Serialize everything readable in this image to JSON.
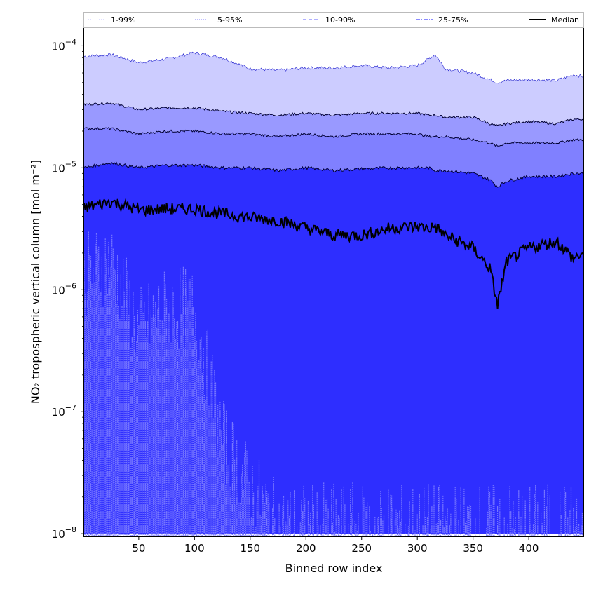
{
  "chart_data": {
    "type": "area",
    "xlabel": "Binned row index",
    "ylabel": "NO₂ tropospheric vertical column [mol m⁻²]",
    "yscale": "log",
    "xlim": [
      1,
      449
    ],
    "ylim": [
      9.5e-09,
      0.00014
    ],
    "x_ticks": [
      50,
      100,
      150,
      200,
      250,
      300,
      350,
      400
    ],
    "y_ticks": [
      {
        "value": 1e-08,
        "base": "10",
        "exp": "−8"
      },
      {
        "value": 1e-07,
        "base": "10",
        "exp": "−7"
      },
      {
        "value": 1e-06,
        "base": "10",
        "exp": "−6"
      },
      {
        "value": 1e-05,
        "base": "10",
        "exp": "−5"
      },
      {
        "value": 0.0001,
        "base": "10",
        "exp": "−4"
      }
    ],
    "legend_position": "top, above plot",
    "legend": [
      {
        "label": "1-99%",
        "color": "#ccccff",
        "style": "dotted"
      },
      {
        "label": "5-95%",
        "color": "#9999ff",
        "style": "dotted"
      },
      {
        "label": "10-90%",
        "color": "#8080ff",
        "style": "dashed"
      },
      {
        "label": "25-75%",
        "color": "#4444ff",
        "style": "dashdot"
      },
      {
        "label": "Median",
        "color": "#000000",
        "style": "solid"
      }
    ],
    "x": [
      1,
      25,
      50,
      75,
      100,
      125,
      150,
      175,
      200,
      225,
      250,
      275,
      300,
      310,
      316,
      325,
      350,
      365,
      372,
      380,
      400,
      425,
      440,
      449
    ],
    "series": [
      {
        "name": "1-99%",
        "color": "#ccccff",
        "upper": [
          8.2e-05,
          8.5e-05,
          7.3e-05,
          7.8e-05,
          8.8e-05,
          8e-05,
          6.5e-05,
          6.3e-05,
          6.6e-05,
          6.6e-05,
          6.9e-05,
          6.6e-05,
          6.9e-05,
          7.8e-05,
          8.5e-05,
          6.5e-05,
          6e-05,
          5.3e-05,
          5e-05,
          5.2e-05,
          5.3e-05,
          5.2e-05,
          5.8e-05,
          5.6e-05
        ],
        "lower": [
          1.1e-06,
          1.5e-06,
          4e-07,
          6e-07,
          6e-07,
          5e-08,
          2e-08,
          1e-08,
          1e-08,
          1e-08,
          1e-08,
          1e-08,
          1e-08,
          1e-08,
          1e-08,
          1e-08,
          1e-08,
          1e-08,
          1e-08,
          1e-08,
          1e-08,
          1e-08,
          1e-08,
          1e-08
        ]
      },
      {
        "name": "5-95%",
        "color": "#9999ff",
        "upper": [
          3.3e-05,
          3.4e-05,
          3e-05,
          3.1e-05,
          3.1e-05,
          2.9e-05,
          2.8e-05,
          2.7e-05,
          2.8e-05,
          2.7e-05,
          2.8e-05,
          2.8e-05,
          2.8e-05,
          2.7e-05,
          2.7e-05,
          2.6e-05,
          2.6e-05,
          2.3e-05,
          2.2e-05,
          2.3e-05,
          2.4e-05,
          2.3e-05,
          2.5e-05,
          2.5e-05
        ]
      },
      {
        "name": "10-90%",
        "color": "#8080ff",
        "upper": [
          2.1e-05,
          2.1e-05,
          1.9e-05,
          2e-05,
          2e-05,
          1.9e-05,
          1.9e-05,
          1.8e-05,
          1.9e-05,
          1.8e-05,
          1.9e-05,
          1.9e-05,
          1.9e-05,
          1.8e-05,
          1.8e-05,
          1.8e-05,
          1.7e-05,
          1.6e-05,
          1.5e-05,
          1.6e-05,
          1.6e-05,
          1.6e-05,
          1.7e-05,
          1.7e-05
        ],
        "lower": [
          1e-08,
          1e-08,
          1e-08,
          1e-08,
          1e-08,
          1e-08,
          1e-08,
          1e-08,
          1e-08,
          1e-08,
          1e-08,
          1e-08,
          1e-08,
          1e-08,
          1e-08,
          1e-08,
          1e-08,
          1e-08,
          1e-08,
          1e-08,
          1e-08,
          1e-08,
          1e-08,
          1e-08
        ]
      },
      {
        "name": "25-75%",
        "color": "#4444ff",
        "upper": [
          1e-05,
          1.1e-05,
          1e-05,
          1.05e-05,
          1.05e-05,
          1e-05,
          1e-05,
          9.5e-06,
          1e-05,
          9.5e-06,
          9.8e-06,
          1e-05,
          1e-05,
          1e-05,
          9.5e-06,
          9.5e-06,
          9e-06,
          8e-06,
          7e-06,
          7.8e-06,
          8.5e-06,
          8.5e-06,
          9e-06,
          9e-06
        ],
        "lower": [
          1e-08,
          1e-08,
          1e-08,
          1e-08,
          1e-08,
          1e-08,
          1e-08,
          1e-08,
          1e-08,
          1e-08,
          1e-08,
          1e-08,
          1e-08,
          1e-08,
          1e-08,
          1e-08,
          1e-08,
          1e-08,
          1e-08,
          1e-08,
          1e-08,
          1e-08,
          1e-08,
          1e-08
        ]
      },
      {
        "name": "Median",
        "color": "#000000",
        "values": [
          4.7e-06,
          5.3e-06,
          4.5e-06,
          4.6e-06,
          4.6e-06,
          4.2e-06,
          3.9e-06,
          3.7e-06,
          3.2e-06,
          2.8e-06,
          2.8e-06,
          3.2e-06,
          3.3e-06,
          3.2e-06,
          3.3e-06,
          2.8e-06,
          2.2e-06,
          1.5e-06,
          7.5e-07,
          1.7e-06,
          2.2e-06,
          2.5e-06,
          1.8e-06,
          2e-06
        ]
      }
    ]
  }
}
